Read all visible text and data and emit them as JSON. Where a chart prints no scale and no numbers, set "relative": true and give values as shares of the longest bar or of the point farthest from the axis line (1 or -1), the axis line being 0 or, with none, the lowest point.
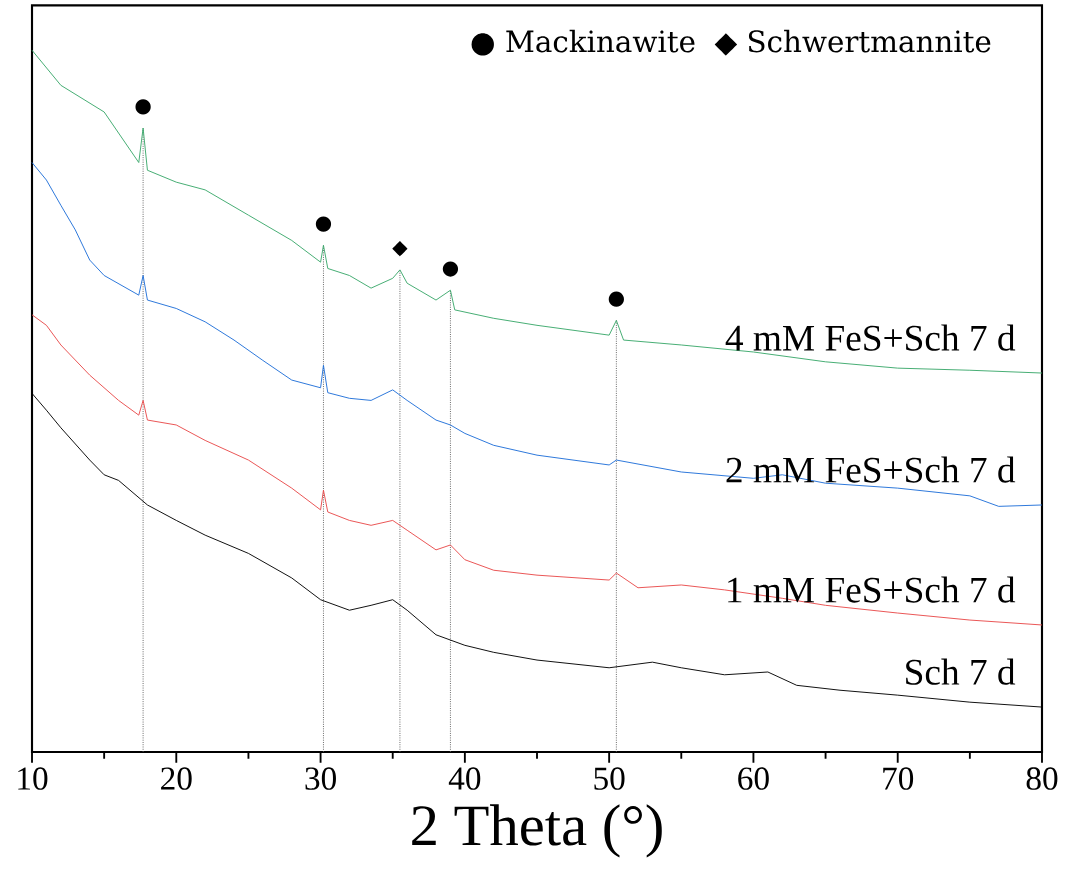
{
  "chart_data": {
    "type": "line",
    "relative": true,
    "xlabel": "2 Theta (°)",
    "xlim": [
      10,
      80
    ],
    "xticks": [
      10,
      20,
      30,
      40,
      50,
      60,
      70,
      80
    ],
    "series": [
      {
        "name": "4 mM FeS+Sch  7 d",
        "color": "#3aa86b",
        "x": [
          10,
          12,
          15,
          17.4,
          17.7,
          18,
          20,
          22,
          25,
          28,
          30,
          30.2,
          30.5,
          32,
          33.5,
          35,
          35.5,
          36,
          38,
          39,
          39.3,
          42,
          45,
          50,
          50.5,
          51,
          55,
          60,
          65,
          70,
          75,
          80
        ],
        "values": [
          1.0,
          0.95,
          0.912,
          0.84,
          0.889,
          0.829,
          0.812,
          0.801,
          0.765,
          0.729,
          0.698,
          0.722,
          0.689,
          0.679,
          0.661,
          0.675,
          0.687,
          0.668,
          0.644,
          0.658,
          0.63,
          0.618,
          0.608,
          0.594,
          0.615,
          0.587,
          0.58,
          0.57,
          0.556,
          0.547,
          0.544,
          0.54
        ]
      },
      {
        "name": "2 mM FeS+Sch  7 d",
        "color": "#1f6fd8",
        "x": [
          10,
          11,
          12,
          13,
          14,
          15,
          17.4,
          17.7,
          18,
          20,
          22,
          24,
          26,
          28,
          30,
          30.2,
          30.5,
          32,
          33.5,
          35,
          36,
          38,
          39,
          40,
          42,
          45,
          50,
          50.5,
          55,
          60,
          62,
          65,
          70,
          75,
          77,
          80
        ],
        "values": [
          0.84,
          0.815,
          0.779,
          0.744,
          0.701,
          0.679,
          0.651,
          0.679,
          0.644,
          0.632,
          0.613,
          0.587,
          0.558,
          0.53,
          0.519,
          0.551,
          0.512,
          0.504,
          0.501,
          0.516,
          0.501,
          0.473,
          0.466,
          0.454,
          0.437,
          0.423,
          0.409,
          0.416,
          0.399,
          0.39,
          0.395,
          0.383,
          0.376,
          0.365,
          0.35,
          0.352
        ]
      },
      {
        "name": "1 mM FeS+Sch  7 d",
        "color": "#e84a4a",
        "x": [
          10,
          11,
          12,
          14,
          16,
          17.4,
          17.7,
          18,
          20,
          22,
          25,
          28,
          30,
          30.2,
          30.5,
          32,
          33.5,
          35,
          36,
          38,
          39,
          40,
          42,
          45,
          50,
          50.5,
          52,
          55,
          58,
          62,
          65,
          70,
          75,
          80
        ],
        "values": [
          0.623,
          0.608,
          0.58,
          0.537,
          0.501,
          0.48,
          0.501,
          0.473,
          0.466,
          0.444,
          0.416,
          0.376,
          0.345,
          0.373,
          0.342,
          0.33,
          0.323,
          0.33,
          0.316,
          0.288,
          0.295,
          0.274,
          0.259,
          0.252,
          0.245,
          0.255,
          0.234,
          0.238,
          0.231,
          0.219,
          0.209,
          0.198,
          0.188,
          0.181
        ]
      },
      {
        "name": "Sch  7 d",
        "color": "#000000",
        "x": [
          10,
          11,
          12,
          14,
          15,
          16,
          18,
          20,
          22,
          25,
          28,
          30,
          32,
          33.5,
          35,
          36,
          38,
          40,
          42,
          45,
          50,
          53,
          55,
          58,
          61,
          63,
          66,
          70,
          75,
          80
        ],
        "values": [
          0.511,
          0.487,
          0.462,
          0.416,
          0.395,
          0.387,
          0.352,
          0.33,
          0.309,
          0.283,
          0.248,
          0.217,
          0.202,
          0.209,
          0.217,
          0.202,
          0.167,
          0.152,
          0.142,
          0.131,
          0.12,
          0.128,
          0.12,
          0.11,
          0.114,
          0.095,
          0.088,
          0.081,
          0.071,
          0.064
        ]
      }
    ],
    "ref_lines": [
      {
        "axis": "x",
        "value": 17.7,
        "color": "#555555",
        "line_style": "dotted"
      },
      {
        "axis": "x",
        "value": 30.2,
        "color": "#555555",
        "line_style": "dotted"
      },
      {
        "axis": "x",
        "value": 35.5,
        "color": "#555555",
        "line_style": "dotted"
      },
      {
        "axis": "x",
        "value": 39,
        "color": "#555555",
        "line_style": "dotted"
      },
      {
        "axis": "x",
        "value": 50.5,
        "color": "#555555",
        "line_style": "dotted"
      }
    ],
    "annotations": [
      "● Mackinawite",
      "◆ Schwertmannite",
      {
        "text": "●",
        "x": 17.7,
        "y": 0.889
      },
      {
        "text": "●",
        "x": 30.2,
        "y": 0.722
      },
      {
        "text": "◆",
        "x": 35.5,
        "y": 0.687
      },
      {
        "text": "●",
        "x": 39,
        "y": 0.658
      },
      {
        "text": "●",
        "x": 50.5,
        "y": 0.615
      }
    ]
  }
}
